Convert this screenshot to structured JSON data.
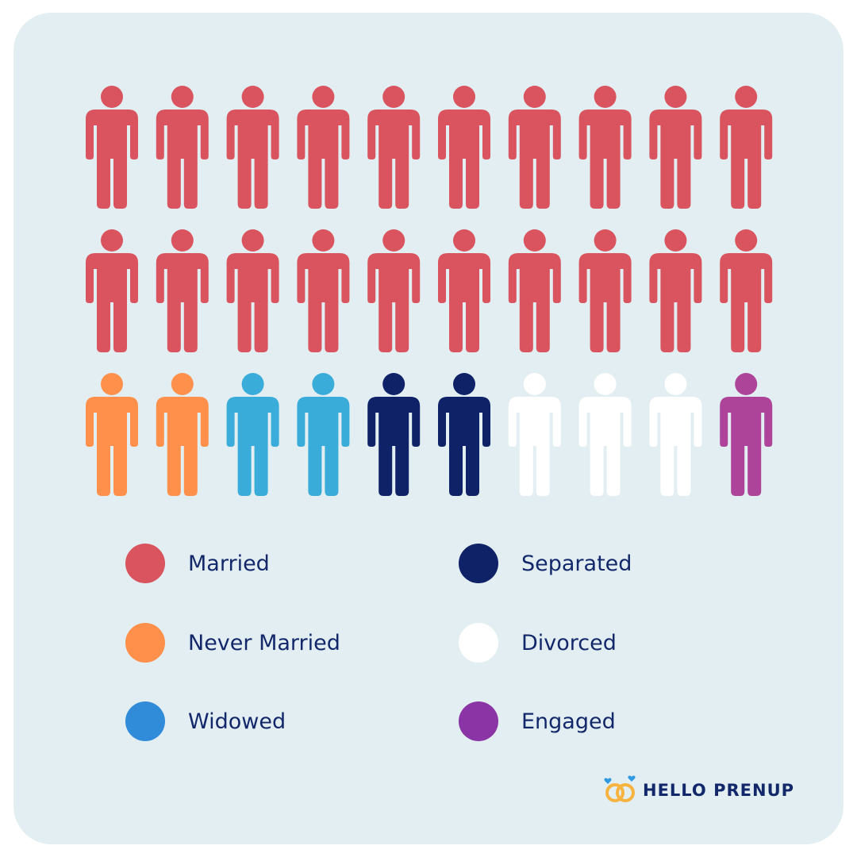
{
  "chart_data": {
    "type": "pictogram",
    "icon": "person-icon",
    "total_icons": 30,
    "icons_per_row": 10,
    "categories": [
      {
        "name": "Married",
        "count": 20,
        "icon_color": "#d9545e",
        "legend_color": "#d9545e"
      },
      {
        "name": "Never Married",
        "count": 2,
        "icon_color": "#fe904b",
        "legend_color": "#fe904b"
      },
      {
        "name": "Widowed",
        "count": 2,
        "icon_color": "#3aacd9",
        "legend_color": "#308bd9"
      },
      {
        "name": "Separated",
        "count": 2,
        "icon_color": "#0f2268",
        "legend_color": "#0f2268"
      },
      {
        "name": "Divorced",
        "count": 3,
        "icon_color": "#ffffff",
        "legend_color": "#ffffff"
      },
      {
        "name": "Engaged",
        "count": 1,
        "icon_color": "#ad4499",
        "legend_color": "#8a34a5"
      }
    ],
    "legend_placement": "bottom"
  },
  "brand": {
    "name": "HELLO PRENUP",
    "logo_icon": "rings-icon",
    "colors": {
      "ring": "#f7b33f",
      "heart": "#2f9ae0",
      "text": "#13286b"
    }
  },
  "background_color": "#e2eef1"
}
